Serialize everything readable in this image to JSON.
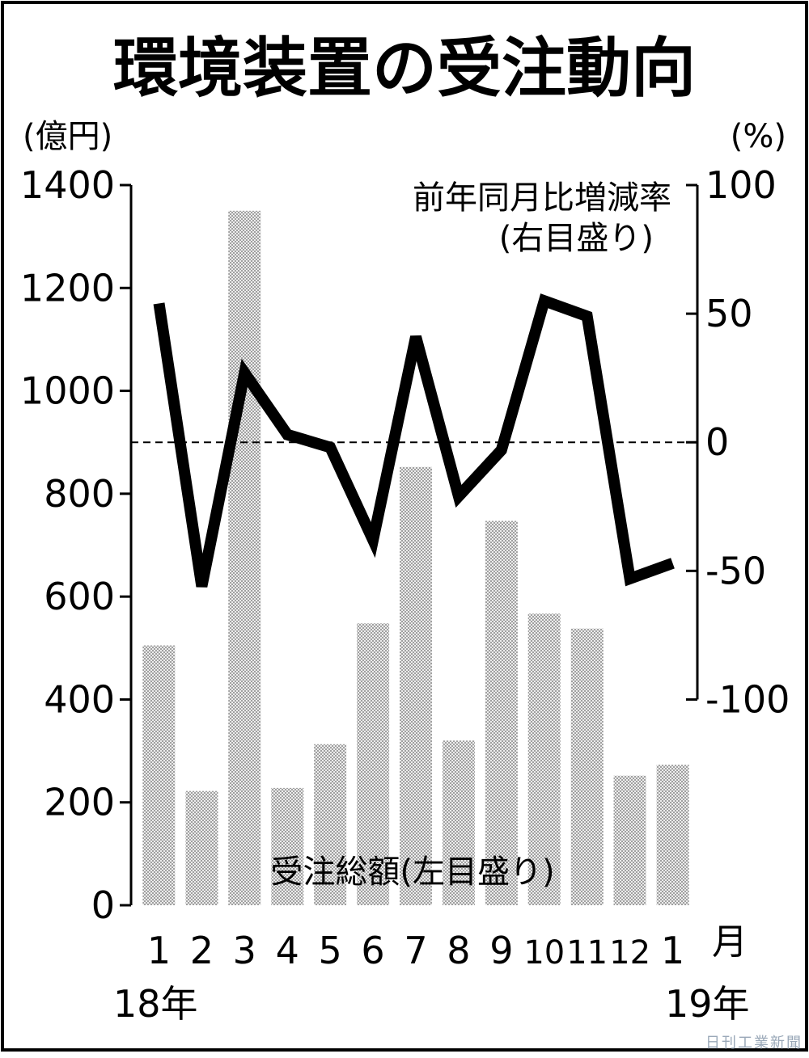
{
  "chart_data": {
    "type": "bar",
    "title": "環境装置の受注動向",
    "left_unit": "(億円)",
    "right_unit": "(%)",
    "bar_label": "受注総額(左目盛り)",
    "line_label_1": "前年同月比増減率",
    "line_label_2": "(右目盛り)",
    "categories": [
      "1",
      "2",
      "3",
      "4",
      "5",
      "6",
      "7",
      "8",
      "9",
      "10",
      "11",
      "12",
      "1"
    ],
    "month_suffix": "月",
    "year_start": "18年",
    "year_end": "19年",
    "left_axis": {
      "ylim": [
        0,
        1400
      ],
      "ticks": [
        0,
        200,
        400,
        600,
        800,
        1000,
        1200,
        1400
      ]
    },
    "right_axis": {
      "ylim": [
        -100,
        100
      ],
      "ticks": [
        -100,
        -50,
        0,
        50,
        100
      ],
      "tick_labels": [
        "-100",
        "-50",
        "0",
        "50",
        "100"
      ]
    },
    "series": [
      {
        "name": "受注総額",
        "type": "bar",
        "axis": "left",
        "values": [
          505,
          222,
          1350,
          228,
          313,
          548,
          852,
          320,
          747,
          567,
          538,
          252,
          273
        ]
      },
      {
        "name": "前年同月比増減率",
        "type": "line",
        "axis": "right",
        "values": [
          54,
          -56,
          27,
          3,
          -2,
          -38,
          41,
          -21,
          -3,
          55,
          49,
          -53,
          -47
        ]
      }
    ],
    "zero_line": "dashed"
  },
  "credit": "日刊工業新聞"
}
